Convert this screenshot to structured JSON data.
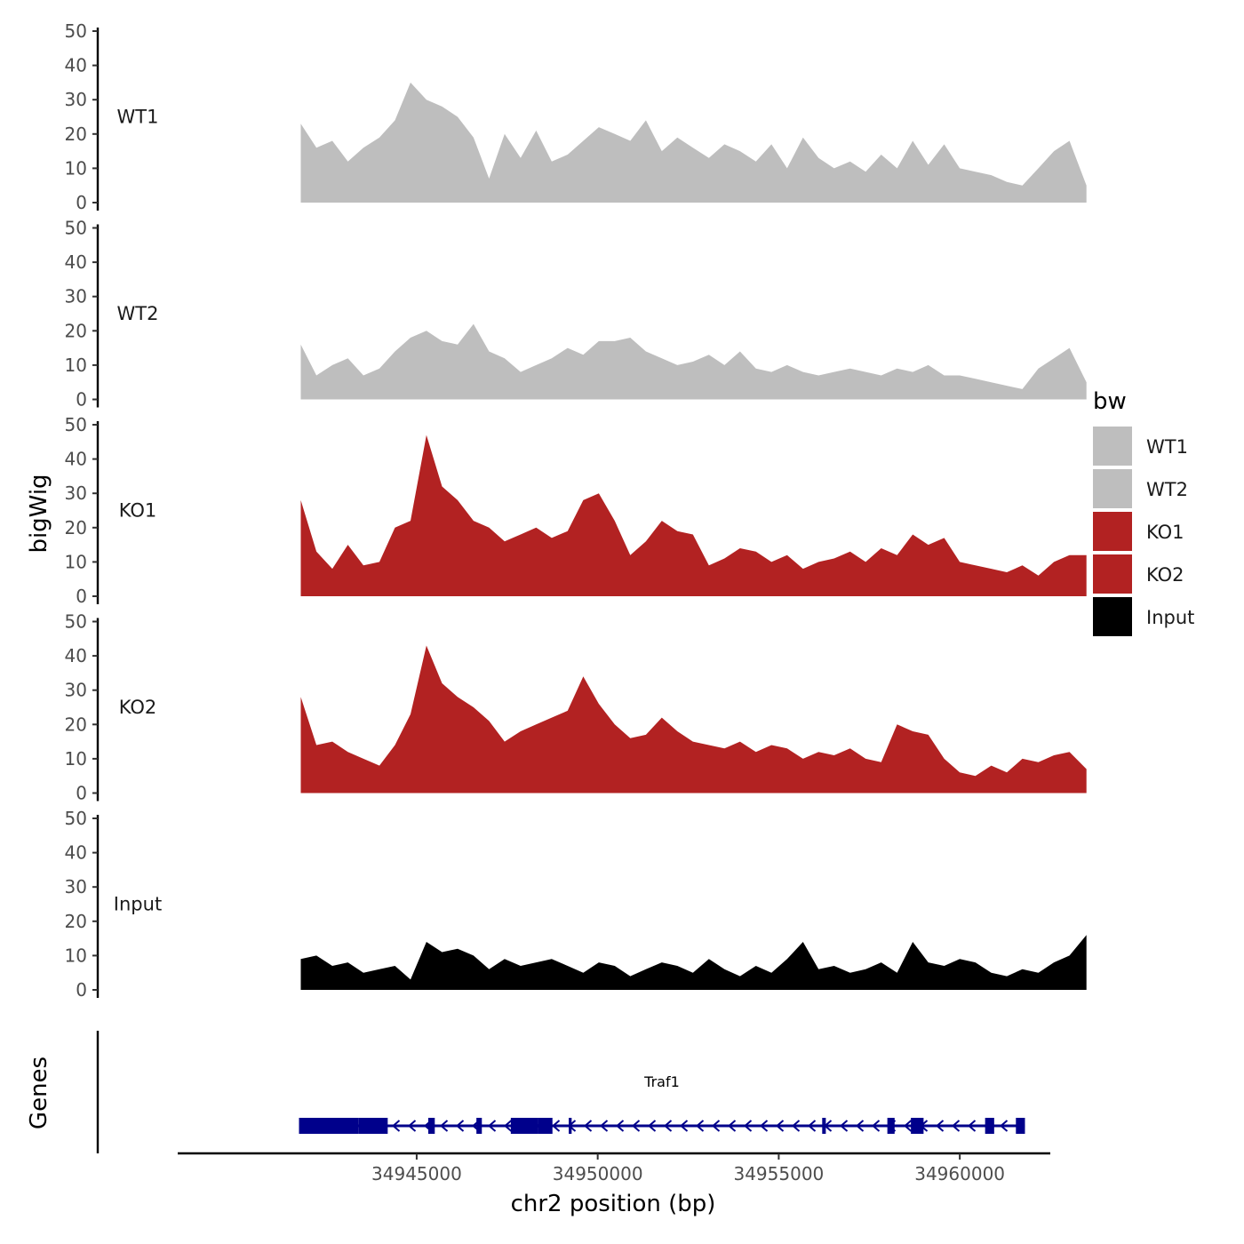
{
  "chart_data": {
    "type": "area",
    "title": "",
    "ylabel": "bigWig",
    "gene_panel_label": "Genes",
    "xlabel": "chr2 position (bp)",
    "xlim": [
      34938400,
      34962500
    ],
    "x_ticks": [
      34945000,
      34950000,
      34955000,
      34960000
    ],
    "x_tick_labels": [
      "34945000",
      "34950000",
      "34955000",
      "34960000"
    ],
    "ylim": [
      0,
      50
    ],
    "y_ticks": [
      0,
      10,
      20,
      30,
      40,
      50
    ],
    "y_tick_labels": [
      "0",
      "10",
      "20",
      "30",
      "40",
      "50"
    ],
    "series": [
      {
        "name": "WT1",
        "color": "#bebebe",
        "x": [
          34941800,
          34942230,
          34942670,
          34943100,
          34943530,
          34943970,
          34944400,
          34944830,
          34945270,
          34945700,
          34946130,
          34946570,
          34947000,
          34947430,
          34947870,
          34948300,
          34948730,
          34949170,
          34949600,
          34950030,
          34950470,
          34950900,
          34951330,
          34951770,
          34952200,
          34952630,
          34953070,
          34953500,
          34953930,
          34954370,
          34954800,
          34955230,
          34955670,
          34956100,
          34956530,
          34956970,
          34957400,
          34957830,
          34958270,
          34958700,
          34959130,
          34959570,
          34960000,
          34960430,
          34960870,
          34961300,
          34961730,
          34962170,
          34962600,
          34963030,
          34963500
        ],
        "values": [
          23,
          16,
          18,
          12,
          16,
          19,
          24,
          35,
          30,
          28,
          25,
          19,
          7,
          20,
          13,
          21,
          12,
          14,
          18,
          22,
          20,
          18,
          24,
          15,
          19,
          16,
          13,
          17,
          15,
          12,
          17,
          10,
          19,
          13,
          10,
          12,
          9,
          14,
          10,
          18,
          11,
          17,
          10,
          9,
          8,
          6,
          5,
          10,
          15,
          18,
          5
        ]
      },
      {
        "name": "WT2",
        "color": "#bebebe",
        "x": [
          34941800,
          34942230,
          34942670,
          34943100,
          34943530,
          34943970,
          34944400,
          34944830,
          34945270,
          34945700,
          34946130,
          34946570,
          34947000,
          34947430,
          34947870,
          34948300,
          34948730,
          34949170,
          34949600,
          34950030,
          34950470,
          34950900,
          34951330,
          34951770,
          34952200,
          34952630,
          34953070,
          34953500,
          34953930,
          34954370,
          34954800,
          34955230,
          34955670,
          34956100,
          34956530,
          34956970,
          34957400,
          34957830,
          34958270,
          34958700,
          34959130,
          34959570,
          34960000,
          34960430,
          34960870,
          34961300,
          34961730,
          34962170,
          34962600,
          34963030,
          34963500
        ],
        "values": [
          16,
          7,
          10,
          12,
          7,
          9,
          14,
          18,
          20,
          17,
          16,
          22,
          14,
          12,
          8,
          10,
          12,
          15,
          13,
          17,
          17,
          18,
          14,
          12,
          10,
          11,
          13,
          10,
          14,
          9,
          8,
          10,
          8,
          7,
          8,
          9,
          8,
          7,
          9,
          8,
          10,
          7,
          7,
          6,
          5,
          4,
          3,
          9,
          12,
          15,
          5
        ]
      },
      {
        "name": "KO1",
        "color": "#b22222",
        "x": [
          34941800,
          34942230,
          34942670,
          34943100,
          34943530,
          34943970,
          34944400,
          34944830,
          34945270,
          34945700,
          34946130,
          34946570,
          34947000,
          34947430,
          34947870,
          34948300,
          34948730,
          34949170,
          34949600,
          34950030,
          34950470,
          34950900,
          34951330,
          34951770,
          34952200,
          34952630,
          34953070,
          34953500,
          34953930,
          34954370,
          34954800,
          34955230,
          34955670,
          34956100,
          34956530,
          34956970,
          34957400,
          34957830,
          34958270,
          34958700,
          34959130,
          34959570,
          34960000,
          34960430,
          34960870,
          34961300,
          34961730,
          34962170,
          34962600,
          34963030,
          34963500
        ],
        "values": [
          28,
          13,
          8,
          15,
          9,
          10,
          20,
          22,
          47,
          32,
          28,
          22,
          20,
          16,
          18,
          20,
          17,
          19,
          28,
          30,
          22,
          12,
          16,
          22,
          19,
          18,
          9,
          11,
          14,
          13,
          10,
          12,
          8,
          10,
          11,
          13,
          10,
          14,
          12,
          18,
          15,
          17,
          10,
          9,
          8,
          7,
          9,
          6,
          10,
          12,
          12
        ]
      },
      {
        "name": "KO2",
        "color": "#b22222",
        "x": [
          34941800,
          34942230,
          34942670,
          34943100,
          34943530,
          34943970,
          34944400,
          34944830,
          34945270,
          34945700,
          34946130,
          34946570,
          34947000,
          34947430,
          34947870,
          34948300,
          34948730,
          34949170,
          34949600,
          34950030,
          34950470,
          34950900,
          34951330,
          34951770,
          34952200,
          34952630,
          34953070,
          34953500,
          34953930,
          34954370,
          34954800,
          34955230,
          34955670,
          34956100,
          34956530,
          34956970,
          34957400,
          34957830,
          34958270,
          34958700,
          34959130,
          34959570,
          34960000,
          34960430,
          34960870,
          34961300,
          34961730,
          34962170,
          34962600,
          34963030,
          34963500
        ],
        "values": [
          28,
          14,
          15,
          12,
          10,
          8,
          14,
          23,
          43,
          32,
          28,
          25,
          21,
          15,
          18,
          20,
          22,
          24,
          34,
          26,
          20,
          16,
          17,
          22,
          18,
          15,
          14,
          13,
          15,
          12,
          14,
          13,
          10,
          12,
          11,
          13,
          10,
          9,
          20,
          18,
          17,
          10,
          6,
          5,
          8,
          6,
          10,
          9,
          11,
          12,
          7
        ]
      },
      {
        "name": "Input",
        "color": "#000000",
        "x": [
          34941800,
          34942230,
          34942670,
          34943100,
          34943530,
          34943970,
          34944400,
          34944830,
          34945270,
          34945700,
          34946130,
          34946570,
          34947000,
          34947430,
          34947870,
          34948300,
          34948730,
          34949170,
          34949600,
          34950030,
          34950470,
          34950900,
          34951330,
          34951770,
          34952200,
          34952630,
          34953070,
          34953500,
          34953930,
          34954370,
          34954800,
          34955230,
          34955670,
          34956100,
          34956530,
          34956970,
          34957400,
          34957830,
          34958270,
          34958700,
          34959130,
          34959570,
          34960000,
          34960430,
          34960870,
          34961300,
          34961730,
          34962170,
          34962600,
          34963030,
          34963500
        ],
        "values": [
          9,
          10,
          7,
          8,
          5,
          6,
          7,
          3,
          14,
          11,
          12,
          10,
          6,
          9,
          7,
          8,
          9,
          7,
          5,
          8,
          7,
          4,
          6,
          8,
          7,
          5,
          9,
          6,
          4,
          7,
          5,
          9,
          14,
          6,
          7,
          5,
          6,
          8,
          5,
          14,
          8,
          7,
          9,
          8,
          5,
          4,
          6,
          5,
          8,
          10,
          16
        ]
      }
    ],
    "track_labels": [
      "WT1",
      "WT2",
      "KO1",
      "KO2",
      "Input"
    ],
    "legend": {
      "title": "bw",
      "position": "right",
      "entries": [
        {
          "label": "WT1",
          "color": "#bebebe"
        },
        {
          "label": "WT2",
          "color": "#bebebe"
        },
        {
          "label": "KO1",
          "color": "#b22222"
        },
        {
          "label": "KO2",
          "color": "#b22222"
        },
        {
          "label": "Input",
          "color": "#000000"
        }
      ]
    },
    "gene": {
      "name": "Traf1",
      "strand": "-",
      "color": "#00008b",
      "start": 34941750,
      "end": 34961800,
      "exons": [
        [
          34941750,
          34943400
        ],
        [
          34943400,
          34944200
        ],
        [
          34945320,
          34945500
        ],
        [
          34946650,
          34946800
        ],
        [
          34947600,
          34948350
        ],
        [
          34948350,
          34948750
        ],
        [
          34949200,
          34949280
        ],
        [
          34956200,
          34956300
        ],
        [
          34958000,
          34958200
        ],
        [
          34958650,
          34959000
        ],
        [
          34960700,
          34960950
        ],
        [
          34961550,
          34961800
        ]
      ]
    }
  }
}
